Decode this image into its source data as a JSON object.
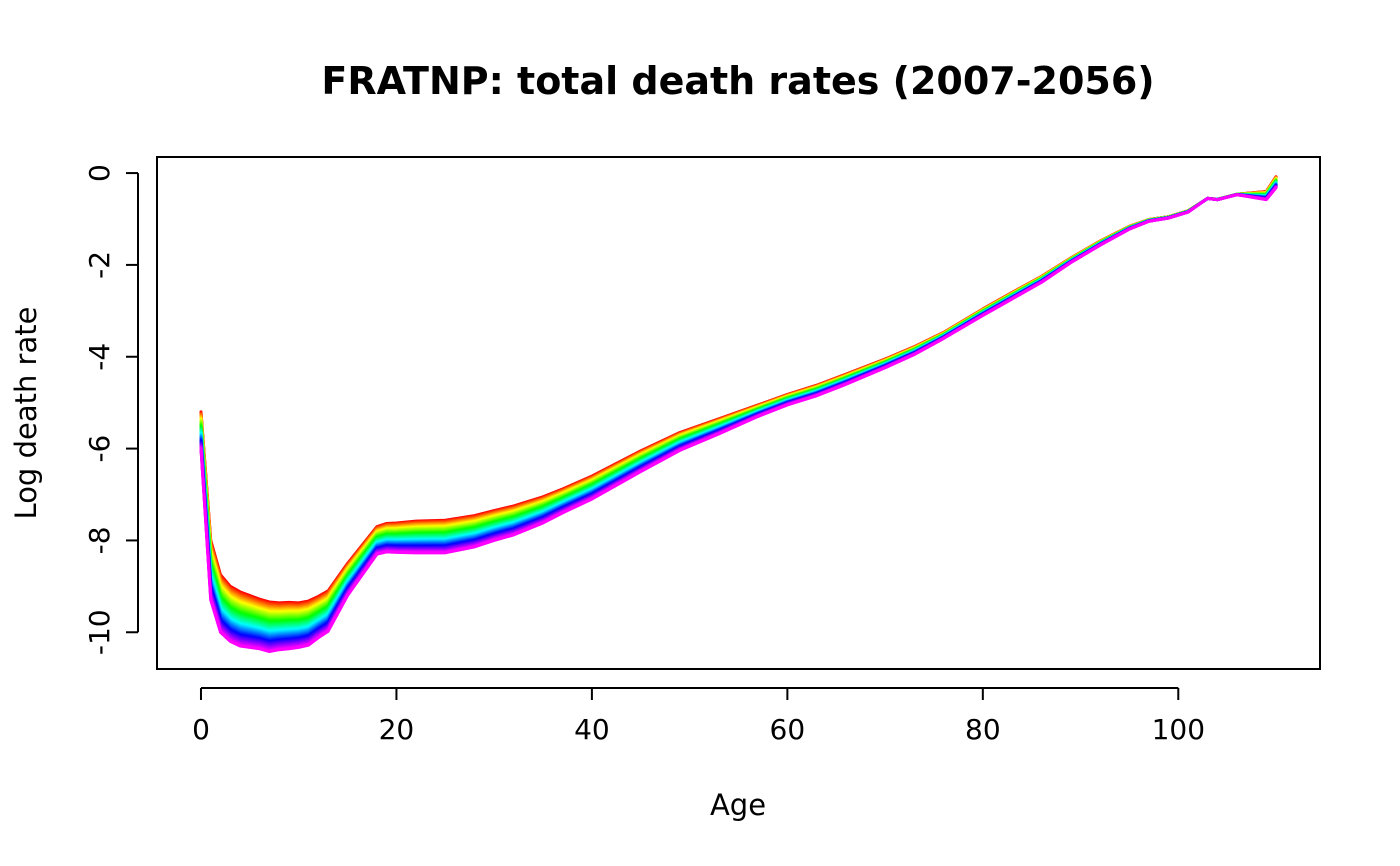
{
  "chart_data": {
    "type": "line",
    "title": "FRATNP: total death rates  (2007-2056)",
    "xlabel": "Age",
    "ylabel": "Log death rate",
    "xlim": [
      -4.5,
      114.5
    ],
    "ylim": [
      -10.8,
      0.35
    ],
    "xticks": [
      0,
      20,
      40,
      60,
      80,
      100
    ],
    "yticks": [
      0,
      -2,
      -4,
      -6,
      -8,
      -10
    ],
    "xtick_labels": [
      "0",
      "20",
      "40",
      "60",
      "80",
      "100"
    ],
    "ytick_labels": [
      "0",
      "-2",
      "-4",
      "-6",
      "-8",
      "-10"
    ],
    "grid": false,
    "legend": "none",
    "series_years": [
      2007,
      2056
    ],
    "palette": "rainbow (red for 2007 through to violet for 2056)",
    "x": [
      0,
      1,
      2,
      3,
      4,
      5,
      6,
      7,
      8,
      9,
      10,
      11,
      12,
      13,
      15,
      18,
      19,
      20,
      22,
      25,
      28,
      30,
      32,
      35,
      37,
      40,
      45,
      49,
      53,
      57,
      60,
      63,
      66,
      70,
      73,
      76,
      80,
      83,
      86,
      89,
      92,
      95,
      97,
      99,
      101,
      103,
      104,
      106,
      109,
      110
    ],
    "series": [
      {
        "name": "2007",
        "values": [
          -5.2,
          -8.0,
          -8.75,
          -9.0,
          -9.12,
          -9.2,
          -9.28,
          -9.34,
          -9.36,
          -9.35,
          -9.36,
          -9.32,
          -9.22,
          -9.1,
          -8.5,
          -7.7,
          -7.63,
          -7.62,
          -7.58,
          -7.56,
          -7.46,
          -7.35,
          -7.25,
          -7.05,
          -6.88,
          -6.6,
          -6.05,
          -5.65,
          -5.35,
          -5.05,
          -4.82,
          -4.62,
          -4.38,
          -4.05,
          -3.78,
          -3.47,
          -2.96,
          -2.6,
          -2.25,
          -1.85,
          -1.48,
          -1.16,
          -1.01,
          -0.95,
          -0.82,
          -0.55,
          -0.57,
          -0.46,
          -0.4,
          -0.08
        ]
      },
      {
        "name": "2056",
        "values": [
          -6.0,
          -9.3,
          -10.0,
          -10.2,
          -10.3,
          -10.33,
          -10.36,
          -10.42,
          -10.38,
          -10.36,
          -10.33,
          -10.28,
          -10.12,
          -9.98,
          -9.2,
          -8.3,
          -8.25,
          -8.26,
          -8.27,
          -8.27,
          -8.14,
          -8.0,
          -7.88,
          -7.62,
          -7.4,
          -7.1,
          -6.5,
          -6.04,
          -5.68,
          -5.3,
          -5.05,
          -4.85,
          -4.6,
          -4.24,
          -3.95,
          -3.6,
          -3.1,
          -2.74,
          -2.38,
          -1.95,
          -1.57,
          -1.22,
          -1.05,
          -0.98,
          -0.85,
          -0.55,
          -0.58,
          -0.47,
          -0.58,
          -0.32
        ]
      }
    ]
  }
}
